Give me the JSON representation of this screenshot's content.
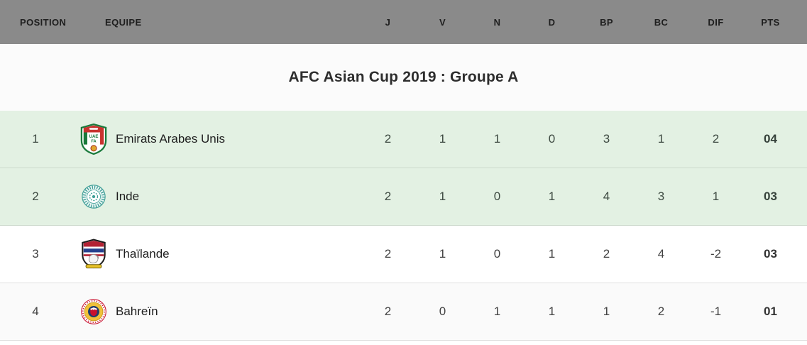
{
  "columns": {
    "position": "POSITION",
    "equipe": "EQUIPE",
    "j": "J",
    "v": "V",
    "n": "N",
    "d": "D",
    "bp": "BP",
    "bc": "BC",
    "dif": "DIF",
    "pts": "PTS"
  },
  "title": "AFC Asian Cup 2019 : Groupe A",
  "rows": [
    {
      "position": "1",
      "team": "Emirats Arabes Unis",
      "badge": "uae-crest",
      "highlight": true,
      "j": "2",
      "v": "1",
      "n": "1",
      "d": "0",
      "bp": "3",
      "bc": "1",
      "dif": "2",
      "pts": "04"
    },
    {
      "position": "2",
      "team": "Inde",
      "badge": "india-crest",
      "highlight": true,
      "j": "2",
      "v": "1",
      "n": "0",
      "d": "1",
      "bp": "4",
      "bc": "3",
      "dif": "1",
      "pts": "03"
    },
    {
      "position": "3",
      "team": "Thaïlande",
      "badge": "thailand-crest",
      "highlight": false,
      "j": "2",
      "v": "1",
      "n": "0",
      "d": "1",
      "bp": "2",
      "bc": "4",
      "dif": "-2",
      "pts": "03"
    },
    {
      "position": "4",
      "team": "Bahreïn",
      "badge": "bahrain-crest",
      "highlight": false,
      "j": "2",
      "v": "0",
      "n": "1",
      "d": "1",
      "bp": "1",
      "bc": "2",
      "dif": "-1",
      "pts": "01"
    }
  ],
  "colors": {
    "header_bg": "#8a8a8a",
    "header_text": "#1e1e1e",
    "highlight_row_bg": "#e3f1e3",
    "row_separator": "#e0e0e0",
    "title_text": "#2d2d2d",
    "points_text": "#333333"
  }
}
